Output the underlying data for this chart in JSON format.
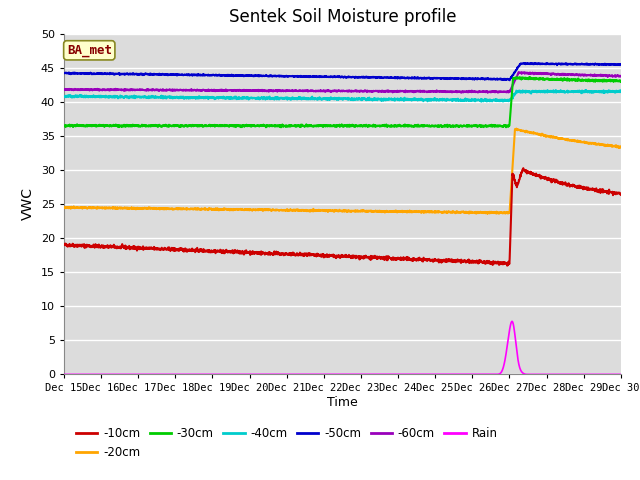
{
  "title": "Sentek Soil Moisture profile",
  "xlabel": "Time",
  "ylabel": "VWC",
  "station_label": "BA_met",
  "ylim": [
    0,
    50
  ],
  "xlim": [
    0,
    15
  ],
  "bg_color": "#dcdcdc",
  "grid_color": "#ffffff",
  "series": {
    "10cm": {
      "color": "#cc0000",
      "lw": 1.5
    },
    "20cm": {
      "color": "#ffa500",
      "lw": 1.5
    },
    "30cm": {
      "color": "#00cc00",
      "lw": 1.5
    },
    "40cm": {
      "color": "#00cccc",
      "lw": 1.5
    },
    "50cm": {
      "color": "#0000cc",
      "lw": 1.5
    },
    "60cm": {
      "color": "#9900bb",
      "lw": 1.5
    },
    "rain": {
      "color": "#ff00ff",
      "lw": 1.2
    }
  },
  "xtick_labels": [
    "Dec 15",
    "Dec 16",
    "Dec 17",
    "Dec 18",
    "Dec 19",
    "Dec 20",
    "Dec 21",
    "Dec 22",
    "Dec 23",
    "Dec 24",
    "Dec 25",
    "Dec 26",
    "Dec 27",
    "Dec 28",
    "Dec 29",
    "Dec 30"
  ],
  "ytick_labels": [
    0,
    5,
    10,
    15,
    20,
    25,
    30,
    35,
    40,
    45,
    50
  ],
  "rain_event_x": 12.0,
  "figsize": [
    6.4,
    4.8
  ],
  "dpi": 100
}
